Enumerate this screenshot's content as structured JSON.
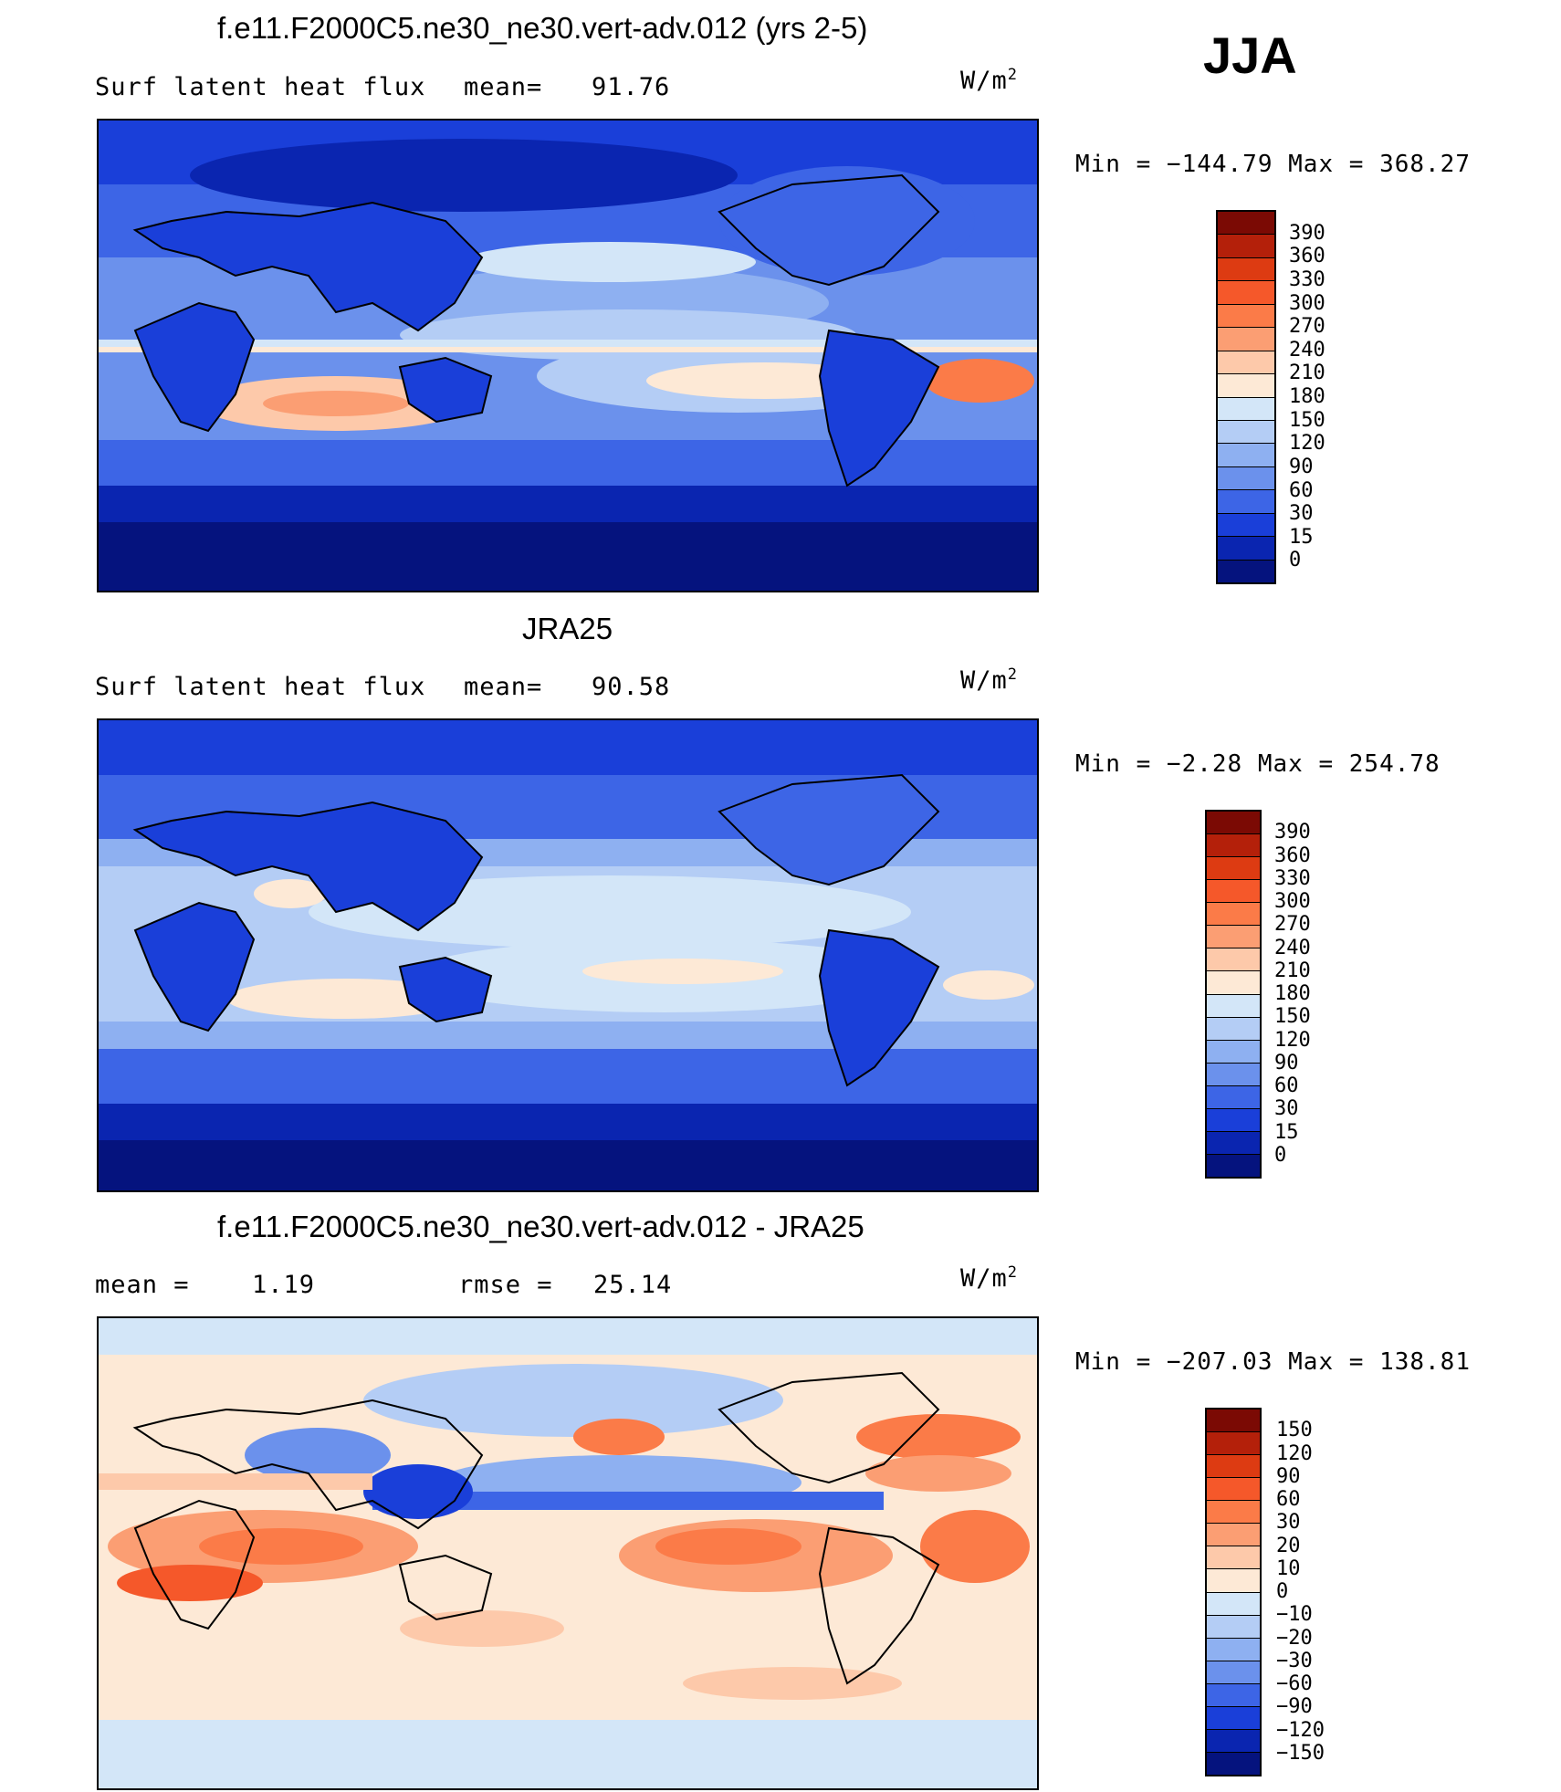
{
  "season": "JJA",
  "units_base": "W/m",
  "units_exp": "2",
  "panels": [
    {
      "title": "f.e11.F2000C5.ne30_ne30.vert-adv.012 (yrs 2-5)",
      "left_label": "Surf  latent  heat  flux",
      "stat_label": "mean=",
      "stat_value": "91.76",
      "minmax": "Min  =  −144.79  Max  =  368.27",
      "colorbar_levels": [
        "390",
        "360",
        "330",
        "300",
        "270",
        "240",
        "210",
        "180",
        "150",
        "120",
        "90",
        "60",
        "30",
        "15",
        "0"
      ],
      "colorbar_colors": [
        "#7b0a04",
        "#b4200a",
        "#dd3b12",
        "#f5582a",
        "#fb7b48",
        "#fb9e73",
        "#fdc9aa",
        "#fde9d6",
        "#d3e6f8",
        "#b4cdf5",
        "#8eb0f1",
        "#6b91ec",
        "#3d65e6",
        "#1a3fd9",
        "#0a25b0",
        "#05137e"
      ]
    },
    {
      "title": "JRA25",
      "left_label": "Surf  latent  heat  flux",
      "stat_label": "mean=",
      "stat_value": "90.58",
      "minmax": "Min  =   −2.28  Max  =  254.78",
      "colorbar_levels": [
        "390",
        "360",
        "330",
        "300",
        "270",
        "240",
        "210",
        "180",
        "150",
        "120",
        "90",
        "60",
        "30",
        "15",
        "0"
      ],
      "colorbar_colors": [
        "#7b0a04",
        "#b4200a",
        "#dd3b12",
        "#f5582a",
        "#fb7b48",
        "#fb9e73",
        "#fdc9aa",
        "#fde9d6",
        "#d3e6f8",
        "#b4cdf5",
        "#8eb0f1",
        "#6b91ec",
        "#3d65e6",
        "#1a3fd9",
        "#0a25b0",
        "#05137e"
      ]
    },
    {
      "title": "f.e11.F2000C5.ne30_ne30.vert-adv.012 - JRA25",
      "left_label": "mean  =",
      "left_value": "1.19",
      "stat_label": "rmse  =",
      "stat_value": "25.14",
      "minmax": "Min  =  −207.03  Max  =  138.81",
      "colorbar_levels": [
        "150",
        "120",
        "90",
        "60",
        "30",
        "20",
        "10",
        "0",
        "−10",
        "−20",
        "−30",
        "−60",
        "−90",
        "−120",
        "−150"
      ],
      "colorbar_colors": [
        "#7b0a04",
        "#b4200a",
        "#dd3b12",
        "#f5582a",
        "#fb7b48",
        "#fb9e73",
        "#fdc9aa",
        "#fde9d6",
        "#d3e6f8",
        "#b4cdf5",
        "#8eb0f1",
        "#6b91ec",
        "#3d65e6",
        "#1a3fd9",
        "#0a25b0",
        "#05137e"
      ]
    }
  ],
  "chart_data": [
    {
      "type": "heatmap",
      "title": "f.e11.F2000C5.ne30_ne30.vert-adv.012 (yrs 2-5)",
      "variable": "Surf latent heat flux",
      "units": "W/m2",
      "mean": 91.76,
      "min": -144.79,
      "max": 368.27,
      "levels": [
        0,
        15,
        30,
        60,
        90,
        120,
        150,
        180,
        210,
        240,
        270,
        300,
        330,
        360,
        390
      ]
    },
    {
      "type": "heatmap",
      "title": "JRA25",
      "variable": "Surf latent heat flux",
      "units": "W/m2",
      "mean": 90.58,
      "min": -2.28,
      "max": 254.78,
      "levels": [
        0,
        15,
        30,
        60,
        90,
        120,
        150,
        180,
        210,
        240,
        270,
        300,
        330,
        360,
        390
      ]
    },
    {
      "type": "heatmap",
      "title": "f.e11.F2000C5.ne30_ne30.vert-adv.012 - JRA25",
      "units": "W/m2",
      "mean": 1.19,
      "rmse": 25.14,
      "min": -207.03,
      "max": 138.81,
      "levels": [
        -150,
        -120,
        -90,
        -60,
        -30,
        -20,
        -10,
        0,
        10,
        20,
        30,
        60,
        90,
        120,
        150
      ]
    }
  ]
}
